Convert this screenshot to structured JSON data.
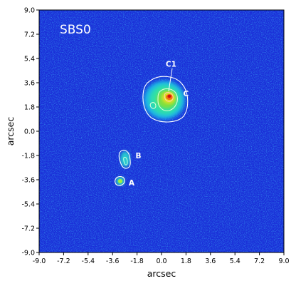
{
  "chart_data": {
    "type": "heatmap",
    "title": "SBS0",
    "xlabel": "arcsec",
    "ylabel": "arcsec",
    "xlim": [
      -9.0,
      9.0
    ],
    "ylim": [
      -9.0,
      9.0
    ],
    "xticks": [
      "-9.0",
      "-7.2",
      "-5.4",
      "-3.6",
      "-1.8",
      "0.0",
      "1.8",
      "3.6",
      "5.4",
      "7.2",
      "9.0"
    ],
    "yticks": [
      "9.0",
      "7.2",
      "5.4",
      "3.6",
      "1.8",
      "0.0",
      "-1.8",
      "-3.6",
      "-5.4",
      "-7.2",
      "-9.0"
    ],
    "colormap": "jet",
    "background_color": "#1a2fd8",
    "contour_color": "#ffffff",
    "sources": [
      {
        "label": "C",
        "x": 0.5,
        "y": 2.4,
        "label_x": 1.8,
        "label_y": 2.8
      },
      {
        "label": "C1",
        "x": 0.5,
        "y": 2.6,
        "label_x": 0.7,
        "label_y": 5.0
      },
      {
        "label": "B",
        "x": -2.8,
        "y": -2.1,
        "label_x": -1.7,
        "label_y": -1.8
      },
      {
        "label": "A",
        "x": -3.1,
        "y": -3.7,
        "label_x": -2.2,
        "label_y": -3.8
      }
    ]
  }
}
